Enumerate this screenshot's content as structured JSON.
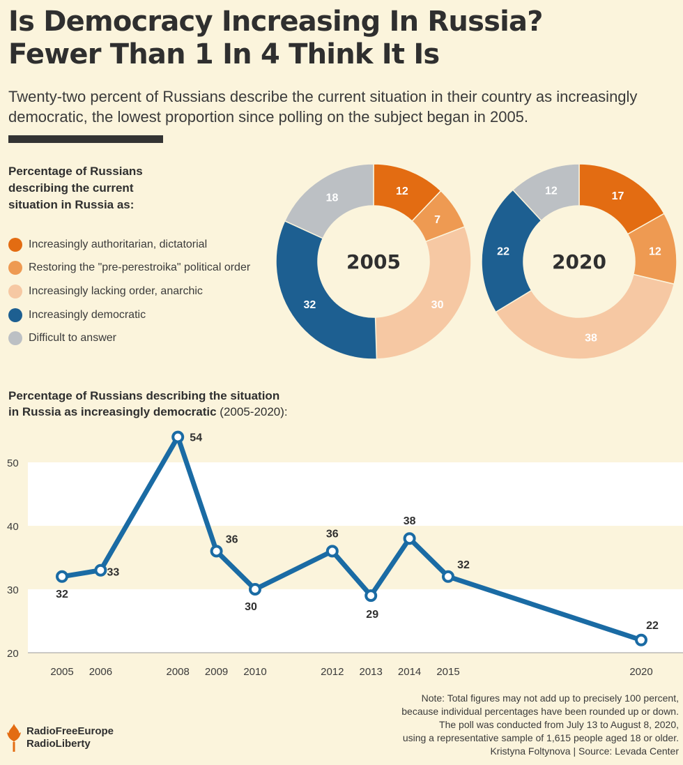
{
  "header": {
    "title_line1": "Is Democracy Increasing In Russia?",
    "title_line2": "Fewer Than 1 In 4 Think It Is",
    "subtitle_line1": "Twenty-two percent of Russians describe the current situation in their country as increasingly",
    "subtitle_line2": "democratic, the lowest proportion since polling on the subject began in 2005."
  },
  "legend": {
    "title_line1": "Percentage of Russians",
    "title_line2": "describing the current",
    "title_line3": "situation in Russia as:",
    "items": [
      {
        "label": "Increasingly authoritarian, dictatorial",
        "color": "#e36c12"
      },
      {
        "label": "Restoring the \"pre-perestroika\" political order",
        "color": "#ee9a52"
      },
      {
        "label": "Increasingly lacking order, anarchic",
        "color": "#f6c8a3"
      },
      {
        "label": "Increasingly democratic",
        "color": "#1d5f91"
      },
      {
        "label": "Difficult to answer",
        "color": "#bcc0c4"
      }
    ]
  },
  "line_title": {
    "bold_line1": "Percentage of Russians describing the situation",
    "bold_line2": "in Russia as increasingly democratic",
    "normal_line2": " (2005-2020):"
  },
  "note": {
    "line1": "Note: Total figures may not add up to precisely 100 percent,",
    "line2": "because individual percentages have been rounded up or down.",
    "line3": "The poll was conducted from July 13 to August 8, 2020,",
    "line4": "using a representative sample of 1,615 people aged 18 or older.",
    "line5": "Kristyna Foltynova | Source: Levada Center"
  },
  "logo": {
    "line1": "RadioFreeEurope",
    "line2": "RadioLiberty",
    "color": "#e36c12"
  },
  "colors": {
    "line": "#1a6ba4",
    "band": "#ffffff",
    "background": "#fbf4dc"
  },
  "chart_data": [
    {
      "type": "pie",
      "title": "2005",
      "categories": [
        "Increasingly authoritarian, dictatorial",
        "Restoring the \"pre-perestroika\" political order",
        "Increasingly lacking order, anarchic",
        "Increasingly democratic",
        "Difficult to answer"
      ],
      "values": [
        12,
        7,
        30,
        32,
        18
      ],
      "colors": [
        "#e36c12",
        "#ee9a52",
        "#f6c8a3",
        "#1d5f91",
        "#bcc0c4"
      ]
    },
    {
      "type": "pie",
      "title": "2020",
      "categories": [
        "Increasingly authoritarian, dictatorial",
        "Restoring the \"pre-perestroika\" political order",
        "Increasingly lacking order, anarchic",
        "Increasingly democratic",
        "Difficult to answer"
      ],
      "values": [
        17,
        12,
        38,
        22,
        12
      ],
      "colors": [
        "#e36c12",
        "#ee9a52",
        "#f6c8a3",
        "#1d5f91",
        "#bcc0c4"
      ]
    },
    {
      "type": "line",
      "title": "Percentage of Russians describing the situation in Russia as increasingly democratic (2005-2020):",
      "x": [
        2005,
        2006,
        2008,
        2009,
        2010,
        2012,
        2013,
        2014,
        2015,
        2020
      ],
      "series": [
        {
          "name": "Increasingly democratic",
          "values": [
            32,
            33,
            54,
            36,
            30,
            36,
            29,
            38,
            32,
            22
          ]
        }
      ],
      "yticks": [
        20,
        30,
        40,
        50
      ],
      "ylim": [
        20,
        55
      ],
      "xlabel": "",
      "ylabel": ""
    }
  ]
}
